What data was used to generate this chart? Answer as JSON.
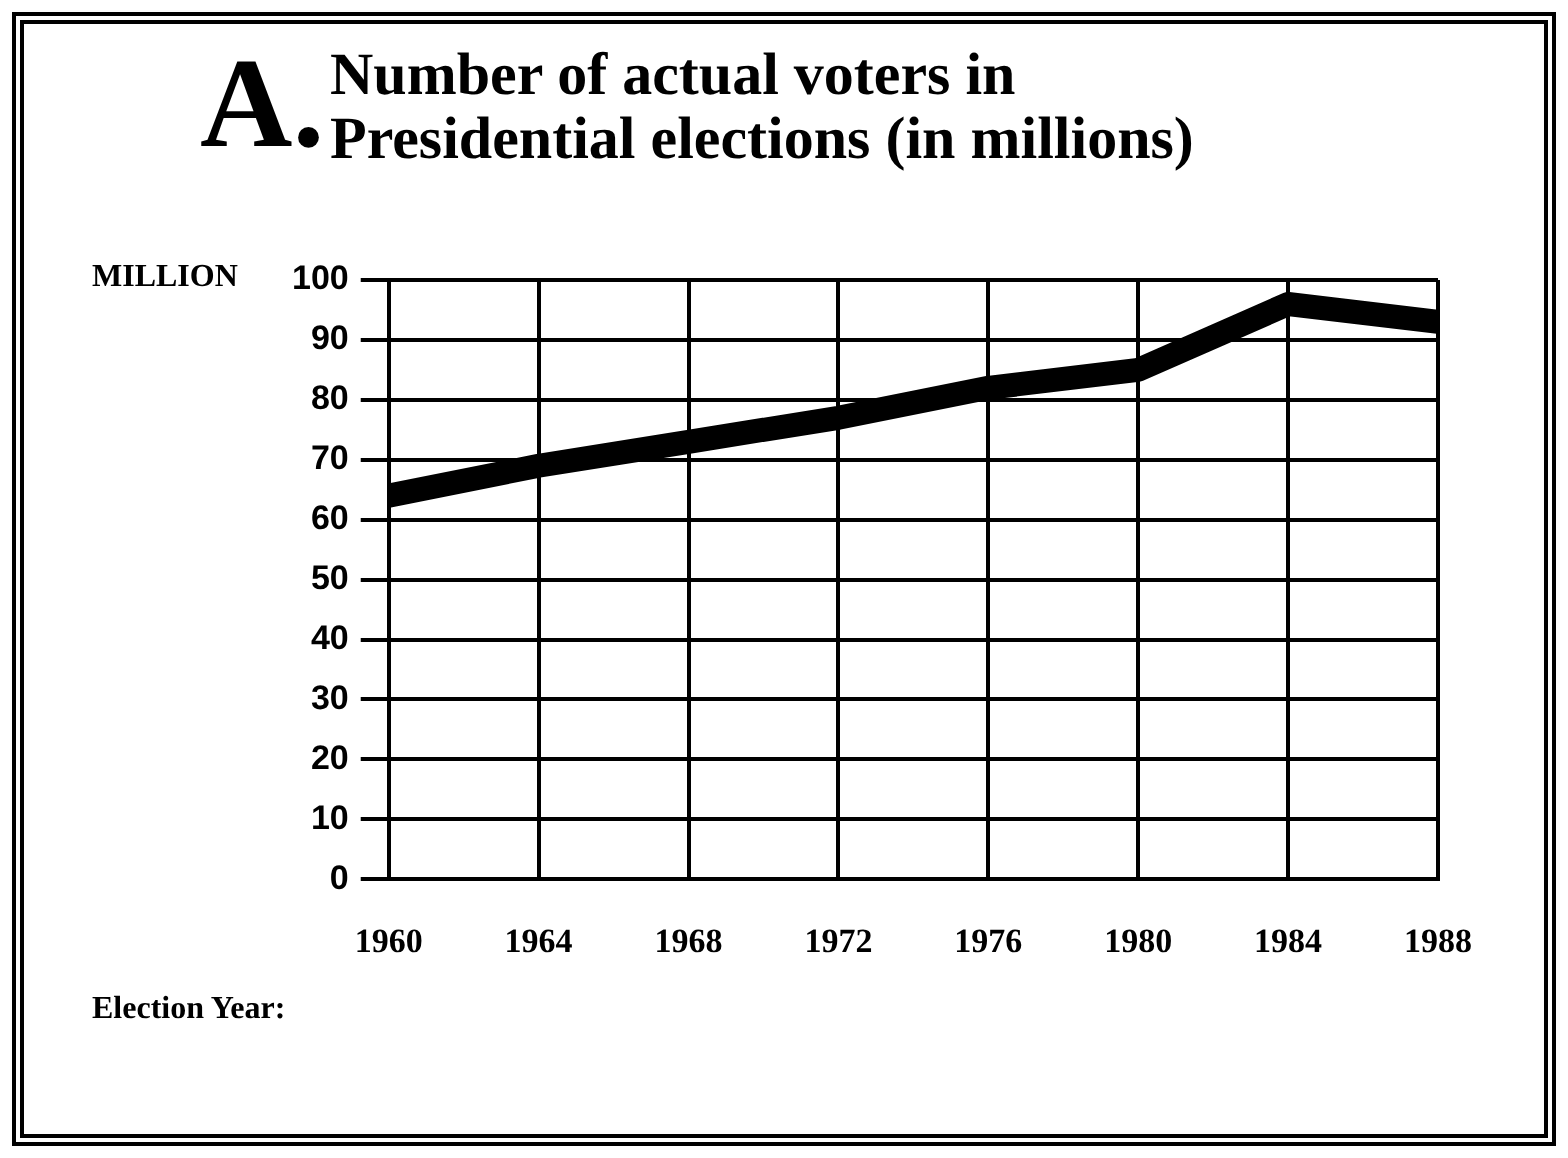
{
  "chart_data": {
    "type": "line",
    "title": "Number of actual voters in Presidential elections (in millions)",
    "annotations": [
      "A."
    ],
    "ylabel": "MILLION",
    "xlabel": "Election Year:",
    "x": [
      1960,
      1964,
      1968,
      1972,
      1976,
      1980,
      1984,
      1988
    ],
    "series": [
      {
        "color": "#000000",
        "values": [
          64,
          69,
          73,
          77,
          82,
          85,
          96,
          93
        ]
      }
    ],
    "xlim": [
      1960,
      1988
    ],
    "xticks": [
      1960,
      1964,
      1968,
      1972,
      1976,
      1980,
      1984,
      1988
    ],
    "ylim": [
      0,
      100
    ],
    "yticks": [
      0,
      10,
      20,
      30,
      40,
      50,
      60,
      70,
      80,
      90,
      100
    ],
    "grid": true,
    "marker": "none",
    "line_style": "solid"
  }
}
